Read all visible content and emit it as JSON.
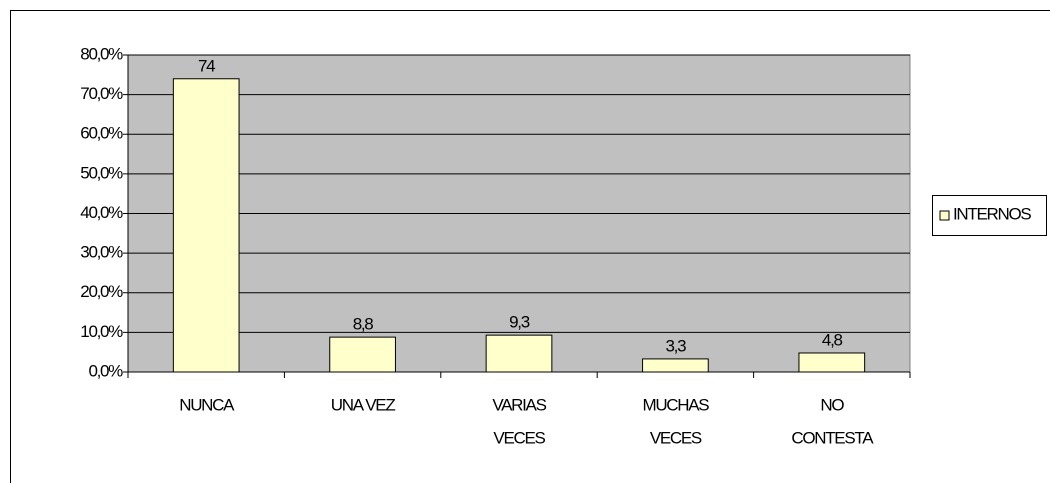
{
  "chart_data": {
    "type": "bar",
    "categories": [
      [
        "NUNCA"
      ],
      [
        "UNA VEZ"
      ],
      [
        "VARIAS",
        "VECES"
      ],
      [
        "MUCHAS",
        "VECES"
      ],
      [
        "NO",
        "CONTESTA"
      ]
    ],
    "series": [
      {
        "name": "INTERNOS",
        "color": "#ffffcc",
        "values": [
          74,
          8.8,
          9.3,
          3.3,
          4.8
        ],
        "value_labels": [
          "74",
          "8,8",
          "9,3",
          "3,3",
          "4,8"
        ]
      }
    ],
    "ylim": [
      0,
      80
    ],
    "yticks": [
      {
        "value": 0,
        "label": "0,0%"
      },
      {
        "value": 10,
        "label": "10,0%"
      },
      {
        "value": 20,
        "label": "20,0%"
      },
      {
        "value": 30,
        "label": "30,0%"
      },
      {
        "value": 40,
        "label": "40,0%"
      },
      {
        "value": 50,
        "label": "50,0%"
      },
      {
        "value": 60,
        "label": "60,0%"
      },
      {
        "value": 70,
        "label": "70,0%"
      },
      {
        "value": 80,
        "label": "80,0%"
      }
    ],
    "grid": true,
    "plot_background": "#c0c0c0",
    "legend": "right"
  }
}
